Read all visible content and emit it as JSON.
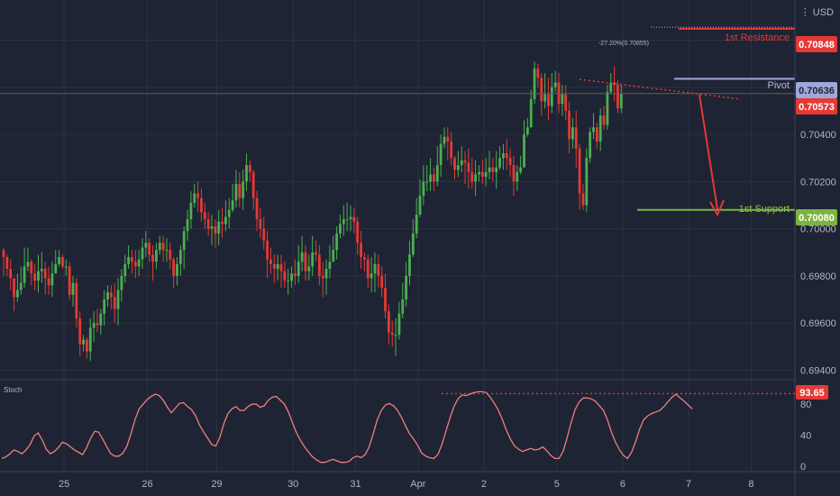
{
  "theme": {
    "background": "#1e2433",
    "grid": "#2a3142",
    "axis_text": "#b2b5be",
    "bull": "#4caf50",
    "bear": "#e53935",
    "resistance": "#e53935",
    "pivot": "#9fa8da",
    "support": "#7cb342",
    "stoch_line": "#ef7e7e"
  },
  "axis": {
    "currency_label": "USD"
  },
  "stoch_panel": {
    "label": "Stoch"
  },
  "chart_data": [
    {
      "type": "candlestick",
      "ylim": [
        0.6936,
        0.7097
      ],
      "y_ticks": [
        "0.70800",
        "0.70600",
        "0.70400",
        "0.70200",
        "0.70000",
        "0.69800",
        "0.69600",
        "0.69400"
      ],
      "x_ticks": [
        "25",
        "26",
        "29",
        "30",
        "31",
        "Apr",
        "2",
        "5",
        "6",
        "7",
        "8"
      ],
      "x_tick_index": [
        6,
        30,
        50,
        72,
        90,
        108,
        127,
        148,
        167,
        186,
        204
      ],
      "levels": [
        {
          "name": "1st Resistance",
          "value": 0.70848,
          "label": "0.70848",
          "color": "#e53935"
        },
        {
          "name": "Pivot",
          "value": 0.70636,
          "label": "0.70636",
          "color": "#9fa8da"
        },
        {
          "name": "1st Support",
          "value": 0.7008,
          "label": "0.70080",
          "color": "#7cb342"
        }
      ],
      "last_price": {
        "value": 0.70573,
        "label": "0.70573",
        "color": "#e53935"
      },
      "fib_annotation": "-27.20%(0.70855)",
      "closes": [
        0.6988,
        0.6983,
        0.6979,
        0.6971,
        0.6974,
        0.6977,
        0.6984,
        0.6986,
        0.6981,
        0.6978,
        0.6982,
        0.6983,
        0.6979,
        0.6976,
        0.6981,
        0.6985,
        0.6988,
        0.6984,
        0.6984,
        0.6972,
        0.6977,
        0.6962,
        0.6951,
        0.6953,
        0.6948,
        0.6958,
        0.696,
        0.6959,
        0.6964,
        0.697,
        0.6973,
        0.6971,
        0.6966,
        0.6974,
        0.698,
        0.6985,
        0.6988,
        0.6986,
        0.6984,
        0.6987,
        0.6992,
        0.6994,
        0.6989,
        0.6986,
        0.6991,
        0.6994,
        0.6991,
        0.6991,
        0.6987,
        0.698,
        0.6985,
        0.6991,
        0.6999,
        0.7004,
        0.7011,
        0.7015,
        0.7013,
        0.7007,
        0.7004,
        0.7,
        0.7001,
        0.6998,
        0.7003,
        0.7002,
        0.7005,
        0.7008,
        0.7012,
        0.7019,
        0.7013,
        0.702,
        0.7027,
        0.7024,
        0.7013,
        0.7004,
        0.7,
        0.6995,
        0.6987,
        0.6985,
        0.6983,
        0.6985,
        0.6982,
        0.6978,
        0.6978,
        0.6981,
        0.698,
        0.6986,
        0.699,
        0.6982,
        0.6984,
        0.699,
        0.6989,
        0.698,
        0.6979,
        0.6983,
        0.6986,
        0.6991,
        0.6998,
        0.7002,
        0.7004,
        0.7004,
        0.7005,
        0.7003,
        0.6994,
        0.6988,
        0.6987,
        0.6979,
        0.6981,
        0.6985,
        0.698,
        0.6975,
        0.6965,
        0.6956,
        0.6955,
        0.6955,
        0.6964,
        0.697,
        0.698,
        0.6989,
        0.6998,
        0.7006,
        0.7014,
        0.702,
        0.702,
        0.7023,
        0.702,
        0.7027,
        0.7036,
        0.7039,
        0.7037,
        0.703,
        0.7025,
        0.7027,
        0.7029,
        0.7028,
        0.7024,
        0.702,
        0.7023,
        0.7024,
        0.7022,
        0.7024,
        0.7026,
        0.7024,
        0.7026,
        0.703,
        0.7032,
        0.703,
        0.7027,
        0.702,
        0.7024,
        0.7026,
        0.704,
        0.7043,
        0.7055,
        0.7068,
        0.7064,
        0.7054,
        0.7057,
        0.7052,
        0.706,
        0.7062,
        0.7053,
        0.7057,
        0.705,
        0.7038,
        0.7043,
        0.7034,
        0.7015,
        0.701,
        0.703,
        0.7041,
        0.7043,
        0.7037,
        0.7048,
        0.7044,
        0.7058,
        0.7062,
        0.7061,
        0.7051,
        0.7057
      ],
      "highs": [
        0.6992,
        0.6989,
        0.6987,
        0.6978,
        0.6981,
        0.6984,
        0.6992,
        0.6992,
        0.6987,
        0.6985,
        0.6989,
        0.699,
        0.6986,
        0.6984,
        0.6986,
        0.6991,
        0.6991,
        0.6989,
        0.6987,
        0.6986,
        0.698,
        0.6979,
        0.6965,
        0.6955,
        0.6954,
        0.6962,
        0.6965,
        0.6966,
        0.6966,
        0.6974,
        0.6976,
        0.6976,
        0.6977,
        0.6979,
        0.6983,
        0.6989,
        0.6993,
        0.6991,
        0.6991,
        0.6991,
        0.6996,
        0.6999,
        0.6996,
        0.6993,
        0.6994,
        0.6997,
        0.6997,
        0.6996,
        0.6994,
        0.6988,
        0.6988,
        0.6993,
        0.7001,
        0.7008,
        0.7016,
        0.7019,
        0.702,
        0.7017,
        0.7011,
        0.7007,
        0.7006,
        0.7004,
        0.7008,
        0.7009,
        0.7012,
        0.7013,
        0.7019,
        0.7025,
        0.7024,
        0.7025,
        0.7032,
        0.7029,
        0.7025,
        0.7016,
        0.7009,
        0.7005,
        0.6999,
        0.6992,
        0.6989,
        0.6989,
        0.6989,
        0.6986,
        0.6983,
        0.6984,
        0.6987,
        0.6993,
        0.6997,
        0.6993,
        0.6989,
        0.6997,
        0.6995,
        0.6993,
        0.6986,
        0.6987,
        0.6993,
        0.6997,
        0.7001,
        0.7006,
        0.701,
        0.7011,
        0.701,
        0.7009,
        0.7005,
        0.6999,
        0.699,
        0.6989,
        0.6988,
        0.699,
        0.6989,
        0.6984,
        0.6981,
        0.6968,
        0.6961,
        0.6962,
        0.6969,
        0.6977,
        0.6986,
        0.6995,
        0.7004,
        0.7013,
        0.7021,
        0.7027,
        0.7027,
        0.703,
        0.7026,
        0.7035,
        0.704,
        0.7043,
        0.7043,
        0.7041,
        0.7031,
        0.7033,
        0.7035,
        0.7033,
        0.7034,
        0.703,
        0.7029,
        0.7027,
        0.7029,
        0.703,
        0.7033,
        0.703,
        0.7033,
        0.7035,
        0.7036,
        0.7038,
        0.7034,
        0.7031,
        0.7027,
        0.7031,
        0.7046,
        0.7047,
        0.7059,
        0.7071,
        0.707,
        0.7066,
        0.7066,
        0.7064,
        0.7066,
        0.7067,
        0.7066,
        0.7061,
        0.7061,
        0.7054,
        0.7047,
        0.705,
        0.7036,
        0.7019,
        0.7034,
        0.7043,
        0.7049,
        0.7045,
        0.7051,
        0.7052,
        0.7061,
        0.7066,
        0.7069,
        0.7063,
        0.7061
      ],
      "lows": [
        0.698,
        0.698,
        0.6974,
        0.6965,
        0.6969,
        0.6972,
        0.6975,
        0.6982,
        0.6976,
        0.6974,
        0.6973,
        0.6977,
        0.6972,
        0.6972,
        0.6971,
        0.6982,
        0.6984,
        0.6983,
        0.698,
        0.697,
        0.6967,
        0.6958,
        0.6946,
        0.6948,
        0.6945,
        0.6944,
        0.6952,
        0.6956,
        0.6955,
        0.6959,
        0.6967,
        0.6966,
        0.696,
        0.6959,
        0.6969,
        0.6977,
        0.6983,
        0.6981,
        0.6979,
        0.698,
        0.6983,
        0.6988,
        0.6986,
        0.6978,
        0.6983,
        0.6989,
        0.6986,
        0.6986,
        0.6983,
        0.6975,
        0.6976,
        0.698,
        0.6983,
        0.6995,
        0.7,
        0.7009,
        0.7007,
        0.7003,
        0.7,
        0.6997,
        0.6993,
        0.6992,
        0.6993,
        0.6996,
        0.6999,
        0.7,
        0.7007,
        0.7009,
        0.7009,
        0.7008,
        0.7016,
        0.702,
        0.7008,
        0.6999,
        0.6996,
        0.6991,
        0.6979,
        0.6981,
        0.6977,
        0.6978,
        0.6975,
        0.6975,
        0.6972,
        0.6975,
        0.6976,
        0.6977,
        0.6982,
        0.6978,
        0.6978,
        0.698,
        0.6986,
        0.6976,
        0.6971,
        0.6972,
        0.6979,
        0.6986,
        0.6987,
        0.6996,
        0.6997,
        0.6999,
        0.6999,
        0.6998,
        0.6989,
        0.6983,
        0.6982,
        0.6975,
        0.6973,
        0.6973,
        0.6975,
        0.6971,
        0.6962,
        0.6951,
        0.695,
        0.6946,
        0.6953,
        0.6962,
        0.6967,
        0.6976,
        0.6988,
        0.6996,
        0.7005,
        0.701,
        0.7016,
        0.7016,
        0.7016,
        0.7018,
        0.7022,
        0.7034,
        0.7029,
        0.7027,
        0.7021,
        0.7022,
        0.7024,
        0.7019,
        0.7017,
        0.7017,
        0.7014,
        0.702,
        0.7019,
        0.7018,
        0.7021,
        0.702,
        0.7017,
        0.7025,
        0.7025,
        0.7025,
        0.7022,
        0.7014,
        0.7016,
        0.7023,
        0.7033,
        0.7039,
        0.7043,
        0.7053,
        0.706,
        0.7048,
        0.7051,
        0.7046,
        0.7049,
        0.7058,
        0.7049,
        0.7048,
        0.7046,
        0.7032,
        0.7034,
        0.7026,
        0.7008,
        0.7008,
        0.7007,
        0.7028,
        0.7038,
        0.7034,
        0.7033,
        0.7042,
        0.7042,
        0.7057,
        0.7054,
        0.7049,
        0.7049
      ]
    },
    {
      "type": "line",
      "name": "Stoch",
      "ylim": [
        0,
        100
      ],
      "y_ticks": [
        80,
        40,
        0
      ],
      "value_label": "93.65",
      "overbought_ref": 93.65,
      "values": [
        10,
        12,
        16,
        21,
        19,
        16,
        21,
        28,
        39,
        43,
        34,
        22,
        16,
        19,
        24,
        31,
        29,
        25,
        21,
        18,
        15,
        24,
        36,
        45,
        44,
        35,
        25,
        16,
        13,
        13,
        17,
        26,
        42,
        60,
        74,
        80,
        86,
        90,
        93,
        91,
        85,
        76,
        69,
        75,
        81,
        82,
        77,
        73,
        65,
        53,
        44,
        36,
        28,
        26,
        37,
        55,
        68,
        74,
        77,
        72,
        72,
        77,
        80,
        80,
        76,
        78,
        85,
        89,
        90,
        85,
        80,
        70,
        56,
        43,
        33,
        25,
        18,
        12,
        8,
        5,
        5,
        7,
        9,
        7,
        5,
        5,
        6,
        11,
        13,
        11,
        15,
        25,
        42,
        60,
        72,
        79,
        81,
        78,
        72,
        63,
        52,
        42,
        35,
        27,
        17,
        13,
        11,
        10,
        15,
        28,
        45,
        62,
        77,
        87,
        92,
        91,
        93,
        95,
        96,
        96,
        95,
        89,
        81,
        72,
        60,
        46,
        35,
        26,
        22,
        19,
        21,
        23,
        21,
        22,
        25,
        20,
        14,
        10,
        10,
        19,
        36,
        56,
        73,
        83,
        88,
        88,
        87,
        84,
        78,
        72,
        60,
        44,
        31,
        21,
        14,
        10,
        18,
        32,
        48,
        60,
        65,
        68,
        70,
        72,
        77,
        83,
        89,
        93,
        88,
        84,
        79,
        74
      ]
    }
  ],
  "annotations": {
    "resistance_label": "1st Resistance",
    "pivot_label": "Pivot",
    "support_label": "1st Support"
  },
  "price_labels": {
    "resistance": "0.70848",
    "pivot": "0.70636",
    "last": "0.70573",
    "support": "0.70080",
    "stoch": "93.65"
  }
}
